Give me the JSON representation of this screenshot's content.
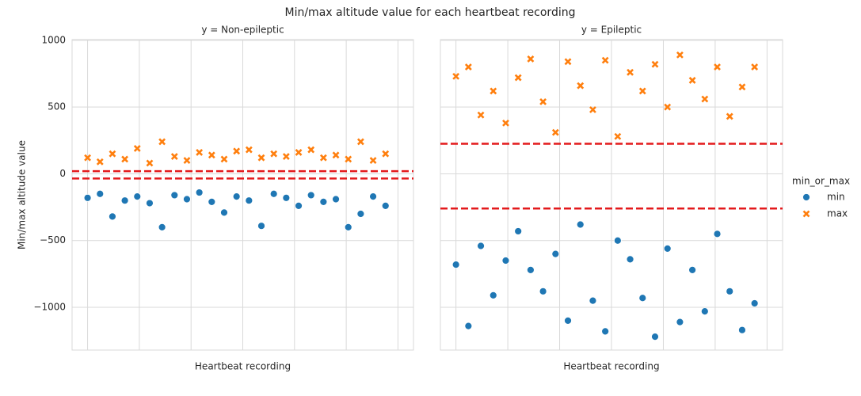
{
  "title": "Min/max altitude value for each heartbeat recording",
  "legend_title": "min_or_max",
  "y_label": "Min/max altitude value",
  "chart_data": [
    {
      "type": "scatter",
      "title": "y = Non-epileptic",
      "x_label": "Heartbeat recording",
      "xlim": [
        -15,
        315
      ],
      "ylim": [
        -1320,
        1005
      ],
      "xticks": [
        0,
        50,
        100,
        150,
        200,
        250,
        300
      ],
      "yticks": [
        {
          "value": -1000,
          "label": "−1000"
        },
        {
          "value": -500,
          "label": "−500"
        },
        0,
        500,
        1000
      ],
      "grid": true,
      "hlines": [
        20,
        -35
      ],
      "hline_color": "#e31a1c",
      "series": [
        {
          "name": "min",
          "color": "#1f77b4",
          "marker": "circle",
          "x": [
            0,
            12,
            24,
            36,
            48,
            60,
            72,
            84,
            96,
            108,
            120,
            132,
            144,
            156,
            168,
            180,
            192,
            204,
            216,
            228,
            240,
            252,
            264,
            276,
            288
          ],
          "values": [
            -180,
            -150,
            -320,
            -200,
            -170,
            -220,
            -400,
            -160,
            -190,
            -140,
            -210,
            -290,
            -170,
            -200,
            -390,
            -150,
            -180,
            -240,
            -160,
            -210,
            -190,
            -400,
            -300,
            -170,
            -240
          ]
        },
        {
          "name": "max",
          "color": "#ff7f0e",
          "marker": "x",
          "x": [
            0,
            12,
            24,
            36,
            48,
            60,
            72,
            84,
            96,
            108,
            120,
            132,
            144,
            156,
            168,
            180,
            192,
            204,
            216,
            228,
            240,
            252,
            264,
            276,
            288
          ],
          "values": [
            120,
            90,
            150,
            110,
            190,
            80,
            240,
            130,
            100,
            160,
            140,
            110,
            170,
            180,
            120,
            150,
            130,
            160,
            180,
            120,
            140,
            110,
            240,
            100,
            150
          ]
        }
      ]
    },
    {
      "type": "scatter",
      "title": "y = Epileptic",
      "x_label": "Heartbeat recording",
      "xlim": [
        -15,
        315
      ],
      "ylim": [
        -1320,
        1005
      ],
      "xticks": [
        0,
        50,
        100,
        150,
        200,
        250,
        300
      ],
      "grid": true,
      "hlines": [
        225,
        -260
      ],
      "hline_color": "#e31a1c",
      "series": [
        {
          "name": "min",
          "color": "#1f77b4",
          "marker": "circle",
          "x": [
            0,
            12,
            24,
            36,
            48,
            60,
            72,
            84,
            96,
            108,
            120,
            132,
            144,
            156,
            168,
            180,
            192,
            204,
            216,
            228,
            240,
            252,
            264,
            276,
            288
          ],
          "values": [
            -680,
            -1140,
            -540,
            -910,
            -650,
            -430,
            -720,
            -880,
            -600,
            -1100,
            -380,
            -950,
            -1180,
            -500,
            -640,
            -930,
            -1220,
            -560,
            -1110,
            -720,
            -1030,
            -450,
            -880,
            -1170,
            -970
          ]
        },
        {
          "name": "max",
          "color": "#ff7f0e",
          "marker": "x",
          "x": [
            0,
            12,
            24,
            36,
            48,
            60,
            72,
            84,
            96,
            108,
            120,
            132,
            144,
            156,
            168,
            180,
            192,
            204,
            216,
            228,
            240,
            252,
            264,
            276,
            288
          ],
          "values": [
            730,
            800,
            440,
            620,
            380,
            720,
            860,
            540,
            310,
            840,
            660,
            480,
            850,
            280,
            760,
            620,
            820,
            500,
            890,
            700,
            560,
            800,
            430,
            650,
            800
          ]
        }
      ]
    }
  ]
}
